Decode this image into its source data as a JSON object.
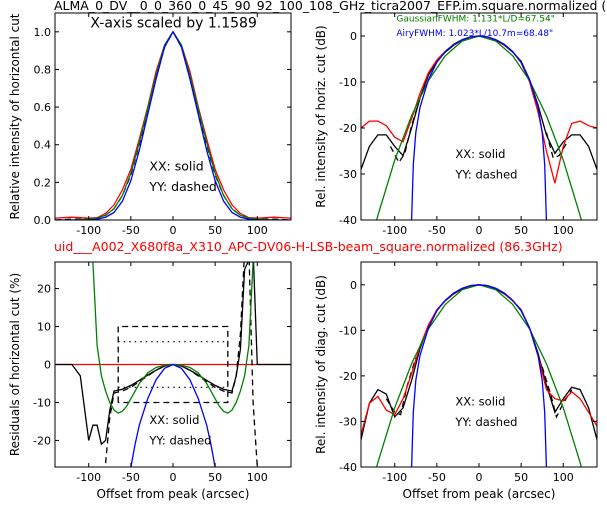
{
  "header": {
    "title": "ALMA_0_DV__0_0_360_0_45_90_92_100_108_GHz_ticra2007_EFP.im.square.normalized (",
    "subtitle": "uid___A002_X680f8a_X310_APC-DV06-H-LSB-beam_square.normalized (86.3GHz)"
  },
  "chart_data": [
    {
      "id": "tl",
      "type": "line",
      "ylabel": "Relative intensity of horizontal cut",
      "xlabel": "",
      "xlim": [
        -140,
        140
      ],
      "ylim": [
        0.0,
        1.1
      ],
      "xticks": [
        -100,
        -50,
        0,
        50,
        100
      ],
      "yticks": [
        0.0,
        0.2,
        0.4,
        0.6,
        0.8,
        1.0
      ],
      "annotations": [
        "X-axis scaled by 1.1589",
        "XX: solid",
        "YY: dashed"
      ],
      "series": [
        {
          "color": "#ff0000",
          "style": "solid",
          "x": [
            -140,
            -120,
            -100,
            -90,
            -80,
            -70,
            -60,
            -50,
            -40,
            -30,
            -20,
            -10,
            0,
            10,
            20,
            30,
            40,
            50,
            60,
            70,
            80,
            90,
            100,
            120,
            140
          ],
          "y": [
            0.01,
            0.015,
            0.01,
            0.012,
            0.035,
            0.08,
            0.16,
            0.27,
            0.43,
            0.6,
            0.79,
            0.93,
            1.0,
            0.93,
            0.79,
            0.6,
            0.43,
            0.27,
            0.16,
            0.08,
            0.035,
            0.012,
            0.01,
            0.015,
            0.01
          ]
        },
        {
          "color": "#000000",
          "style": "dashed",
          "x": [
            -140,
            -120,
            -100,
            -90,
            -80,
            -70,
            -60,
            -50,
            -40,
            -30,
            -20,
            -10,
            0,
            10,
            20,
            30,
            40,
            50,
            60,
            70,
            80,
            90,
            100,
            120,
            140
          ],
          "y": [
            0.0,
            0.005,
            0.005,
            0.01,
            0.025,
            0.06,
            0.13,
            0.24,
            0.4,
            0.57,
            0.76,
            0.92,
            1.0,
            0.92,
            0.76,
            0.57,
            0.4,
            0.24,
            0.13,
            0.06,
            0.025,
            0.01,
            0.005,
            0.005,
            0.0
          ]
        },
        {
          "color": "#008000",
          "style": "solid",
          "x": [
            -140,
            -120,
            -100,
            -90,
            -80,
            -70,
            -60,
            -50,
            -40,
            -30,
            -20,
            -10,
            0,
            10,
            20,
            30,
            40,
            50,
            60,
            70,
            80,
            90,
            100,
            120,
            140
          ],
          "y": [
            0.0,
            0.0,
            0.005,
            0.01,
            0.025,
            0.06,
            0.13,
            0.25,
            0.41,
            0.59,
            0.77,
            0.93,
            1.0,
            0.93,
            0.77,
            0.59,
            0.41,
            0.25,
            0.13,
            0.06,
            0.025,
            0.01,
            0.005,
            0.0,
            0.0
          ]
        },
        {
          "color": "#0000ff",
          "style": "solid",
          "x": [
            -140,
            -100,
            -90,
            -80,
            -70,
            -60,
            -50,
            -40,
            -30,
            -20,
            -10,
            0,
            10,
            20,
            30,
            40,
            50,
            60,
            70,
            80,
            90,
            100,
            140
          ],
          "y": [
            0.0,
            0.0,
            0.005,
            0.015,
            0.04,
            0.1,
            0.21,
            0.37,
            0.56,
            0.75,
            0.92,
            1.0,
            0.92,
            0.75,
            0.56,
            0.37,
            0.21,
            0.1,
            0.04,
            0.015,
            0.005,
            0.0,
            0.0
          ]
        }
      ]
    },
    {
      "id": "tr",
      "type": "line",
      "ylabel": "Rel. intensity of horiz. cut (dB)",
      "xlabel": "",
      "xlim": [
        -140,
        140
      ],
      "ylim": [
        -40,
        5
      ],
      "xticks": [
        -100,
        -50,
        0,
        50,
        100
      ],
      "yticks": [
        -40,
        -30,
        -20,
        -10,
        0
      ],
      "annotations": [
        "GaussianFWHM: 1.131*L/D=67.54\"",
        "AiryFWHM: 1.023*L/10.7m=68.48\"",
        "XX: solid",
        "YY: dashed"
      ],
      "series": [
        {
          "color": "#000000",
          "style": "solid",
          "x": [
            -140,
            -130,
            -120,
            -110,
            -100,
            -90,
            -80,
            -70,
            -60,
            -50,
            -40,
            -30,
            -20,
            -10,
            0,
            10,
            20,
            30,
            40,
            50,
            60,
            70,
            80,
            90,
            100,
            110,
            120,
            130,
            140
          ],
          "y": [
            -29,
            -24,
            -21.5,
            -21.5,
            -24,
            -26,
            -20,
            -13.5,
            -8.5,
            -5.5,
            -3.5,
            -2.0,
            -0.9,
            -0.2,
            0,
            -0.2,
            -0.9,
            -2.0,
            -3.5,
            -5.5,
            -9.5,
            -15,
            -21.5,
            -25.5,
            -23,
            -21.5,
            -21.5,
            -24,
            -29
          ]
        },
        {
          "color": "#000000",
          "style": "dashed",
          "x": [
            -105,
            -95,
            -88,
            -80,
            -70
          ],
          "y": [
            -24,
            -27.5,
            -25.5,
            -19.5,
            -13.5
          ]
        },
        {
          "color": "#000000",
          "style": "dashed",
          "x": [
            80,
            88,
            95,
            105
          ],
          "y": [
            -21,
            -26.5,
            -26,
            -23
          ]
        },
        {
          "color": "#ff0000",
          "style": "solid",
          "x": [
            -140,
            -130,
            -120,
            -110,
            -100,
            -90,
            -80,
            -70,
            -60,
            -50,
            -40,
            -30,
            -20,
            -10,
            0,
            10,
            20,
            30,
            40,
            50,
            60,
            70,
            80,
            90,
            100,
            110,
            120,
            130,
            140
          ],
          "y": [
            -20,
            -18.5,
            -18.5,
            -19.5,
            -22,
            -23,
            -18,
            -12.5,
            -8,
            -5.2,
            -3.3,
            -1.9,
            -0.8,
            -0.2,
            0,
            -0.2,
            -0.8,
            -1.9,
            -3.4,
            -5.8,
            -10,
            -16.5,
            -25,
            -32,
            -24,
            -19,
            -18.5,
            -19.5,
            -20
          ]
        },
        {
          "color": "#008000",
          "style": "solid",
          "x": [
            -140,
            -120,
            -100,
            -80,
            -60,
            -40,
            -20,
            0,
            20,
            40,
            60,
            80,
            100,
            120,
            140
          ],
          "y": [
            -53,
            -39,
            -27,
            -17.3,
            -9.7,
            -4.3,
            -1.1,
            0,
            -1.1,
            -4.3,
            -9.7,
            -17.3,
            -27,
            -39,
            -53
          ]
        },
        {
          "color": "#0000ff",
          "style": "solid",
          "x": [
            -80,
            -78,
            -75,
            -70,
            -60,
            -50,
            -40,
            -30,
            -20,
            -10,
            0,
            10,
            20,
            30,
            40,
            50,
            60,
            70,
            75,
            78,
            80
          ],
          "y": [
            -40,
            -28,
            -21,
            -15.5,
            -9.5,
            -5.7,
            -3.4,
            -1.8,
            -0.8,
            -0.2,
            0,
            -0.2,
            -0.8,
            -1.8,
            -3.4,
            -5.7,
            -9.5,
            -15.5,
            -21,
            -28,
            -40
          ]
        }
      ]
    },
    {
      "id": "bl",
      "type": "line",
      "ylabel": "Residuals of horizontal cut (%)",
      "xlabel": "Offset from peak (arcsec)",
      "xlim": [
        -140,
        140
      ],
      "ylim": [
        -27,
        27
      ],
      "xticks": [
        -100,
        -50,
        0,
        50,
        100
      ],
      "yticks": [
        -20,
        -10,
        0,
        10,
        20
      ],
      "annotations": [
        "XX: solid",
        "YY: dashed"
      ],
      "series": [
        {
          "color": "#ff0000",
          "style": "solid",
          "x": [
            -140,
            140
          ],
          "y": [
            0,
            0
          ]
        },
        {
          "color": "#000000",
          "style": "solid",
          "x": [
            -140,
            -120,
            -110,
            -100,
            -95,
            -90,
            -85,
            -80,
            -75,
            -70,
            -60,
            -50,
            -40,
            -30,
            -20,
            -10,
            0,
            10,
            20,
            30,
            40,
            50,
            60,
            70,
            75,
            80,
            85,
            95,
            100,
            110,
            140
          ],
          "y": [
            0,
            0,
            -3,
            -20,
            -16,
            -16,
            -21,
            -20,
            -12,
            -7,
            -6.5,
            -5.5,
            -4.2,
            -2.8,
            -1.5,
            -0.4,
            0,
            -0.4,
            -1.5,
            -2.8,
            -4.2,
            -5.5,
            -6.5,
            -7,
            -3,
            4,
            25,
            30,
            0,
            0,
            0
          ]
        },
        {
          "color": "#000000",
          "style": "dashed",
          "x": [
            -80,
            -75,
            -70,
            -60,
            -50,
            -40,
            -30,
            -20,
            -10,
            0,
            10,
            20,
            30,
            40,
            50,
            60,
            70,
            75,
            80,
            85,
            90,
            95,
            100
          ],
          "y": [
            -26,
            -14,
            -7.5,
            -7,
            -6,
            -4.5,
            -3,
            -1.5,
            -0.4,
            0,
            -0.4,
            -1.5,
            -3,
            -4.5,
            -6,
            -7,
            -7.5,
            -3,
            8,
            30,
            30,
            -10,
            -27
          ]
        },
        {
          "color": "#000000",
          "style": "dashed_box",
          "x": [
            -65,
            -65,
            65,
            65,
            -65
          ],
          "y": [
            -10,
            10,
            10,
            -10,
            -10
          ]
        },
        {
          "color": "#000000",
          "style": "dotted",
          "x": [
            -65,
            65
          ],
          "y": [
            6,
            6
          ]
        },
        {
          "color": "#000000",
          "style": "dotted",
          "x": [
            -65,
            65
          ],
          "y": [
            -6,
            -6
          ]
        },
        {
          "color": "#008000",
          "style": "solid",
          "x": [
            -95,
            -90,
            -85,
            -80,
            -75,
            -70,
            -65,
            -60,
            -55,
            -50,
            -45,
            -40,
            -30,
            -20,
            -10,
            0,
            10,
            20,
            30,
            40,
            45,
            50,
            55,
            60,
            65,
            70,
            75,
            80,
            85,
            90,
            95
          ],
          "y": [
            27,
            5,
            -3,
            -7,
            -10,
            -12,
            -12.8,
            -12.3,
            -11,
            -9,
            -7,
            -5,
            -2.2,
            -0.8,
            -0.2,
            0,
            -0.2,
            -0.8,
            -2.2,
            -5,
            -7,
            -9,
            -11,
            -12.3,
            -12.8,
            -12,
            -10,
            -7,
            -3,
            5,
            27
          ]
        },
        {
          "color": "#0000ff",
          "style": "solid",
          "x": [
            -50,
            -45,
            -40,
            -30,
            -20,
            -10,
            0,
            10,
            20,
            30,
            40,
            45,
            50
          ],
          "y": [
            -27,
            -21,
            -16,
            -9,
            -4,
            -1,
            0,
            -1,
            -4,
            -9,
            -16,
            -21,
            -27
          ]
        }
      ]
    },
    {
      "id": "br",
      "type": "line",
      "ylabel": "Rel. intensity of diag. cut (dB)",
      "xlabel": "Offset from peak (arcsec)",
      "xlim": [
        -140,
        140
      ],
      "ylim": [
        -40,
        5
      ],
      "xticks": [
        -100,
        -50,
        0,
        50,
        100
      ],
      "yticks": [
        -40,
        -30,
        -20,
        -10,
        0
      ],
      "annotations": [
        "XX: solid",
        "YY: dashed"
      ],
      "series": [
        {
          "color": "#000000",
          "style": "solid",
          "x": [
            -140,
            -130,
            -120,
            -110,
            -100,
            -90,
            -80,
            -70,
            -60,
            -50,
            -40,
            -30,
            -20,
            -10,
            0,
            10,
            20,
            30,
            40,
            50,
            60,
            70,
            80,
            90,
            100,
            110,
            120,
            130,
            140
          ],
          "y": [
            -34,
            -26,
            -23,
            -24,
            -29,
            -27,
            -21,
            -14,
            -9,
            -5.5,
            -3.5,
            -2,
            -0.9,
            -0.2,
            0,
            -0.2,
            -0.9,
            -2,
            -3.5,
            -5.5,
            -9.5,
            -15,
            -22,
            -28,
            -25,
            -22.5,
            -23,
            -27,
            -34
          ]
        },
        {
          "color": "#000000",
          "style": "dashed",
          "x": [
            -110,
            -100,
            -93,
            -85,
            -75
          ],
          "y": [
            -25,
            -28,
            -28.5,
            -22,
            -16
          ]
        },
        {
          "color": "#000000",
          "style": "dashed",
          "x": [
            75,
            85,
            92,
            100,
            110
          ],
          "y": [
            -18,
            -24,
            -29,
            -26,
            -23
          ]
        },
        {
          "color": "#ff0000",
          "style": "solid",
          "x": [
            -140,
            -130,
            -120,
            -110,
            -100,
            -90,
            -80,
            -70,
            -60,
            -50,
            -40,
            -30,
            -20,
            -10,
            0,
            10,
            20,
            30,
            40,
            50,
            60,
            70,
            80,
            90,
            100,
            110,
            120,
            130,
            140
          ],
          "y": [
            -33,
            -26,
            -24.5,
            -27.5,
            -28.5,
            -25,
            -19.5,
            -13.5,
            -8.8,
            -5.5,
            -3.4,
            -1.9,
            -0.8,
            -0.2,
            0,
            -0.2,
            -0.8,
            -1.9,
            -3.5,
            -5.6,
            -9.5,
            -15.5,
            -23,
            -25,
            -25.5,
            -23.5,
            -25,
            -28,
            -31
          ]
        },
        {
          "color": "#008000",
          "style": "solid",
          "x": [
            -140,
            -120,
            -100,
            -80,
            -60,
            -40,
            -20,
            0,
            20,
            40,
            60,
            80,
            100,
            120,
            140
          ],
          "y": [
            -53,
            -39,
            -27,
            -17.3,
            -9.7,
            -4.3,
            -1.1,
            0,
            -1.1,
            -4.3,
            -9.7,
            -17.3,
            -27,
            -39,
            -53
          ]
        },
        {
          "color": "#0000ff",
          "style": "solid",
          "x": [
            -80,
            -78,
            -75,
            -70,
            -60,
            -50,
            -40,
            -30,
            -20,
            -10,
            0,
            10,
            20,
            30,
            40,
            50,
            60,
            70,
            75,
            78,
            80
          ],
          "y": [
            -40,
            -28,
            -21,
            -15.5,
            -9.5,
            -5.7,
            -3.4,
            -1.8,
            -0.8,
            -0.2,
            0,
            -0.2,
            -0.8,
            -1.8,
            -3.4,
            -5.7,
            -9.5,
            -15.5,
            -21,
            -28,
            -40
          ]
        }
      ]
    }
  ]
}
